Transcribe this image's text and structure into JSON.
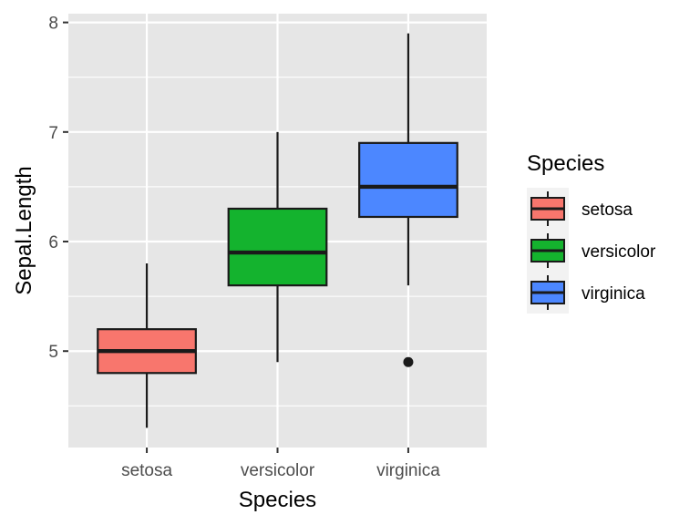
{
  "chart_data": {
    "type": "boxplot",
    "xlabel": "Species",
    "ylabel": "Sepal.Length",
    "ylim": [
      4.12,
      8.08
    ],
    "y_ticks": [
      5,
      6,
      7,
      8
    ],
    "y_tick_labels": [
      "5",
      "6",
      "7",
      "8"
    ],
    "y_minor_ticks": [
      4.5,
      5.5,
      6.5,
      7.5
    ],
    "categories": [
      "setosa",
      "versicolor",
      "virginica"
    ],
    "grid": true,
    "panel_background": "#e6e6e6",
    "boxes": [
      {
        "category": "setosa",
        "min": 4.3,
        "q1": 4.8,
        "median": 5.0,
        "q3": 5.2,
        "max": 5.8,
        "outliers": [],
        "color": "#f8766d"
      },
      {
        "category": "versicolor",
        "min": 4.9,
        "q1": 5.6,
        "median": 5.9,
        "q3": 6.3,
        "max": 7.0,
        "outliers": [],
        "color": "#14b32e"
      },
      {
        "category": "virginica",
        "min": 5.6,
        "q1": 6.225,
        "median": 6.5,
        "q3": 6.9,
        "max": 7.9,
        "outliers": [
          4.9
        ],
        "color": "#4c87ff"
      }
    ],
    "legend": {
      "title": "Species",
      "position": "right",
      "items": [
        {
          "label": "setosa",
          "color": "#f8766d"
        },
        {
          "label": "versicolor",
          "color": "#14b32e"
        },
        {
          "label": "virginica",
          "color": "#4c87ff"
        }
      ]
    }
  }
}
